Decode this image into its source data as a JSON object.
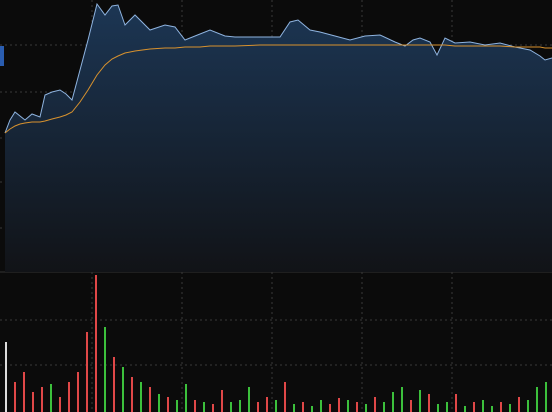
{
  "chart_data": [
    {
      "type": "line",
      "grid": true,
      "xlim": [
        0,
        552
      ],
      "ylim": [
        0,
        272
      ],
      "xticks": [
        92,
        182,
        272,
        362,
        452
      ],
      "yticks": [
        44,
        90,
        134,
        180,
        227
      ],
      "area_color": "#1c3654",
      "x": [
        5,
        10,
        15,
        20,
        25,
        32,
        40,
        45,
        52,
        60,
        66,
        72,
        80,
        88,
        97,
        105,
        112,
        118,
        125,
        135,
        150,
        165,
        175,
        185,
        200,
        210,
        225,
        235,
        260,
        280,
        290,
        298,
        310,
        320,
        335,
        350,
        365,
        380,
        395,
        405,
        413,
        420,
        430,
        437,
        445,
        455,
        470,
        485,
        500,
        515,
        530,
        540,
        545,
        552
      ],
      "series": [
        {
          "color": "#8fb4e0",
          "values": [
            139,
            152,
            160,
            156,
            152,
            158,
            155,
            177,
            180,
            182,
            178,
            172,
            202,
            232,
            268,
            257,
            266,
            267,
            247,
            257,
            242,
            247,
            245,
            232,
            238,
            242,
            236,
            235,
            235,
            235,
            250,
            252,
            242,
            240,
            236,
            232,
            236,
            237,
            230,
            226,
            232,
            234,
            230,
            217,
            234,
            229,
            230,
            227,
            229,
            225,
            222,
            216,
            212,
            214
          ]
        },
        {
          "color": "#d8922e",
          "values": [
            139,
            143,
            146,
            148,
            149,
            150,
            150,
            151,
            153,
            155,
            157,
            160,
            170,
            182,
            197,
            207,
            213,
            216,
            219,
            221,
            223,
            224,
            224,
            225,
            225,
            226,
            226,
            226,
            227,
            227,
            227,
            227,
            227,
            227,
            227,
            227,
            227,
            227,
            227,
            227,
            227,
            227,
            227,
            227,
            227,
            226,
            226,
            226,
            226,
            225,
            225,
            225,
            224,
            224
          ]
        }
      ]
    },
    {
      "type": "bar",
      "grid": true,
      "xlim": [
        0,
        552
      ],
      "ylim": [
        0,
        140
      ],
      "xticks": [
        92,
        182,
        272,
        362,
        452
      ],
      "yticks": [
        47,
        92
      ],
      "x": [
        6,
        15,
        24,
        33,
        42,
        51,
        60,
        69,
        78,
        87,
        96,
        105,
        114,
        123,
        132,
        141,
        150,
        159,
        168,
        177,
        186,
        195,
        204,
        213,
        222,
        231,
        240,
        249,
        258,
        267,
        276,
        285,
        294,
        303,
        312,
        321,
        330,
        339,
        348,
        357,
        366,
        375,
        384,
        393,
        402,
        411,
        420,
        429,
        438,
        447,
        456,
        465,
        474,
        483,
        492,
        501,
        510,
        519,
        528,
        537,
        546
      ],
      "values": [
        70,
        30,
        40,
        20,
        25,
        28,
        15,
        30,
        40,
        80,
        137,
        85,
        55,
        45,
        35,
        30,
        25,
        18,
        15,
        12,
        28,
        12,
        10,
        8,
        22,
        10,
        12,
        25,
        10,
        15,
        12,
        30,
        8,
        10,
        6,
        12,
        8,
        14,
        12,
        10,
        8,
        15,
        10,
        20,
        25,
        12,
        22,
        18,
        8,
        10,
        18,
        6,
        10,
        12,
        6,
        10,
        8,
        15,
        12,
        25,
        30
      ],
      "colors": [
        "#dddddd",
        "#e04848",
        "#e04848",
        "#e04848",
        "#e04848",
        "#3cc03c",
        "#e04848",
        "#e04848",
        "#e04848",
        "#e04848",
        "#e04848",
        "#3cc03c",
        "#e04848",
        "#3cc03c",
        "#e04848",
        "#3cc03c",
        "#e04848",
        "#3cc03c",
        "#e04848",
        "#3cc03c",
        "#3cc03c",
        "#e04848",
        "#3cc03c",
        "#e04848",
        "#e04848",
        "#3cc03c",
        "#3cc03c",
        "#3cc03c",
        "#e04848",
        "#e04848",
        "#3cc03c",
        "#e04848",
        "#3cc03c",
        "#e04848",
        "#3cc03c",
        "#3cc03c",
        "#e04848",
        "#e04848",
        "#3cc03c",
        "#e04848",
        "#3cc03c",
        "#e04848",
        "#3cc03c",
        "#3cc03c",
        "#3cc03c",
        "#e04848",
        "#3cc03c",
        "#e04848",
        "#3cc03c",
        "#3cc03c",
        "#e04848",
        "#3cc03c",
        "#e04848",
        "#3cc03c",
        "#3cc03c",
        "#e04848",
        "#3cc03c",
        "#e04848",
        "#3cc03c",
        "#3cc03c",
        "#3cc03c"
      ]
    }
  ]
}
